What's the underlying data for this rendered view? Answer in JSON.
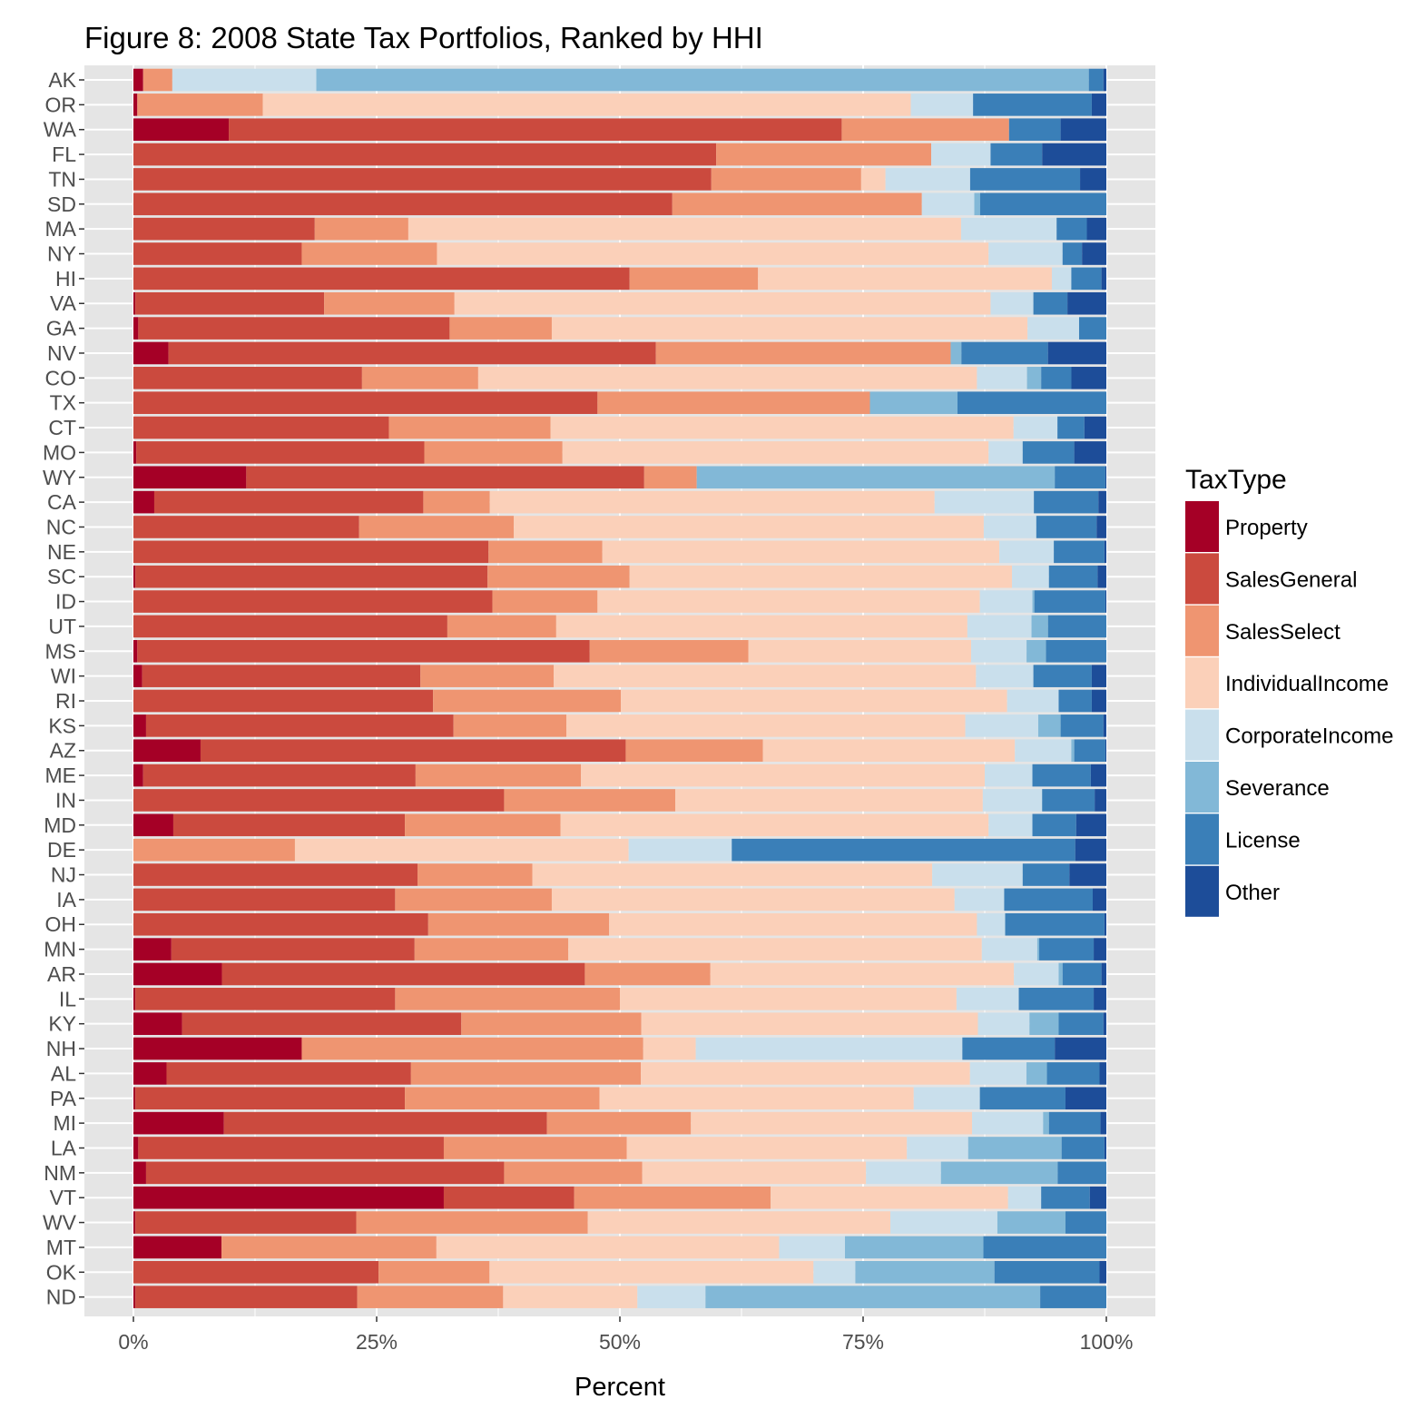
{
  "chart_data": {
    "type": "bar",
    "orientation": "horizontal",
    "stacked": "percent",
    "title": "Figure 8: 2008 State Tax Portfolios, Ranked by HHI",
    "xlabel": "Percent",
    "ylabel": "",
    "xlim": [
      0,
      100
    ],
    "x_ticks": [
      "0%",
      "25%",
      "50%",
      "75%",
      "100%"
    ],
    "x_tick_values": [
      0,
      25,
      50,
      75,
      100
    ],
    "legend_title": "TaxType",
    "legend_position": "right",
    "grid": true,
    "categories": [
      "AK",
      "OR",
      "WA",
      "FL",
      "TN",
      "SD",
      "MA",
      "NY",
      "HI",
      "VA",
      "GA",
      "NV",
      "CO",
      "TX",
      "CT",
      "MO",
      "WY",
      "CA",
      "NC",
      "NE",
      "SC",
      "ID",
      "UT",
      "MS",
      "WI",
      "RI",
      "KS",
      "AZ",
      "ME",
      "IN",
      "MD",
      "DE",
      "NJ",
      "IA",
      "OH",
      "MN",
      "AR",
      "IL",
      "KY",
      "NH",
      "AL",
      "PA",
      "MI",
      "LA",
      "NM",
      "VT",
      "WV",
      "MT",
      "OK",
      "ND"
    ],
    "series": [
      {
        "name": "Property",
        "color": "#a50026",
        "values": [
          1,
          0.4,
          9.8,
          0,
          0,
          0,
          0,
          0,
          0,
          0.2,
          0.5,
          3.6,
          0,
          0,
          0,
          0.3,
          11.6,
          2.1,
          0,
          0,
          0.2,
          0,
          0,
          0.4,
          0.9,
          0,
          1.3,
          6.9,
          1,
          0,
          4.1,
          0,
          0,
          0,
          0,
          3.9,
          9.1,
          0.2,
          5,
          17.3,
          3.4,
          0.2,
          9.3,
          0.5,
          1.3,
          31.9,
          0.2,
          9.1,
          0,
          0.2
        ]
      },
      {
        "name": "SalesGeneral",
        "color": "#cb4a3e",
        "values": [
          0,
          0,
          63,
          59.9,
          59.4,
          55.5,
          18.6,
          17.3,
          51,
          19.4,
          32,
          50.1,
          24.2,
          47.7,
          25.6,
          29.6,
          40.9,
          27.1,
          23.2,
          36.5,
          36.2,
          36.9,
          32.3,
          46.5,
          28.6,
          30.8,
          31.6,
          43.7,
          28,
          38.1,
          23.8,
          0,
          29.2,
          26.9,
          30.3,
          25,
          37.3,
          26.7,
          28.7,
          0,
          25.1,
          27.7,
          33.2,
          31.4,
          36.8,
          13.4,
          22.7,
          0,
          25.2,
          22.8
        ]
      },
      {
        "name": "SalesSelect",
        "color": "#ef9571",
        "values": [
          3,
          12.9,
          17.2,
          22.1,
          15.4,
          25.7,
          9.6,
          13.9,
          13.2,
          13.4,
          10.5,
          30.3,
          12.3,
          28,
          16.2,
          14.2,
          5.4,
          6.7,
          15.9,
          11.7,
          14.6,
          10.8,
          11.2,
          16.3,
          13.7,
          19.3,
          11.6,
          14.1,
          17,
          17.6,
          16,
          16.6,
          11.8,
          16.1,
          18.6,
          15.8,
          12.9,
          23.1,
          18.5,
          35.1,
          23.6,
          20,
          14.8,
          18.8,
          14.2,
          20.2,
          23.8,
          22.2,
          11.4,
          15
        ]
      },
      {
        "name": "IndividualIncome",
        "color": "#fbd0b9",
        "values": [
          0,
          66.6,
          0,
          0,
          2.5,
          0,
          56.7,
          56.7,
          30.2,
          55.1,
          48.9,
          0,
          52.8,
          0,
          46.4,
          43.8,
          0,
          44.8,
          48.3,
          40.8,
          39.3,
          39.3,
          42.3,
          22.9,
          43.4,
          39.7,
          41,
          25.9,
          41.5,
          31.6,
          44,
          34.3,
          41.1,
          41.4,
          37.8,
          42.5,
          31.2,
          34.6,
          34.6,
          5.4,
          33.8,
          32.3,
          28.9,
          28.8,
          23,
          24.4,
          31.1,
          35.4,
          33.3,
          13.8
        ]
      },
      {
        "name": "CorporateIncome",
        "color": "#c9dfec",
        "values": [
          14.8,
          6.4,
          0,
          6.1,
          8.7,
          5.4,
          9.8,
          7.6,
          2,
          4.4,
          5.3,
          0,
          5.3,
          0,
          4.4,
          3.5,
          0,
          10,
          5.4,
          5.6,
          3.8,
          5.4,
          6.6,
          5.7,
          5.9,
          5.3,
          7.5,
          5.8,
          4.9,
          6.1,
          4.5,
          10.6,
          9.3,
          5.1,
          2.9,
          5.7,
          4.6,
          6.4,
          5.3,
          27.4,
          5.8,
          6.8,
          7.3,
          6.3,
          7.7,
          3.4,
          11,
          6.8,
          4.3,
          7
        ]
      },
      {
        "name": "Severance",
        "color": "#82b8d7",
        "values": [
          79.4,
          0,
          0,
          0,
          0,
          0.6,
          0,
          0,
          0,
          0,
          0,
          1.1,
          1.5,
          9,
          0,
          0,
          36.8,
          0,
          0,
          0,
          0,
          0.2,
          1.7,
          2,
          0,
          0,
          2.3,
          0.3,
          0,
          0,
          0,
          0,
          0,
          0,
          0,
          0.2,
          0.4,
          0,
          3,
          0,
          2.1,
          0,
          0.6,
          9.6,
          12,
          0,
          7,
          14.3,
          14.3,
          34.4
        ]
      },
      {
        "name": "License",
        "color": "#3a7fb8",
        "values": [
          1.5,
          12.2,
          5.3,
          5.3,
          11.3,
          13,
          3.1,
          2,
          3.1,
          3.5,
          2.8,
          8.9,
          3.2,
          15.3,
          2.7,
          5.3,
          5.2,
          6.5,
          6.2,
          5.2,
          5,
          7.3,
          6,
          6.2,
          6,
          3.4,
          4.4,
          3.2,
          6,
          5.4,
          4.5,
          35.3,
          4.8,
          9.1,
          10.2,
          5.6,
          4,
          7.7,
          4.6,
          9.5,
          5.4,
          8.8,
          5.3,
          4.4,
          5,
          5,
          4.2,
          12.7,
          10.8,
          6.8
        ]
      },
      {
        "name": "Other",
        "color": "#1d4d99",
        "values": [
          0.3,
          1.5,
          4.7,
          6.6,
          2.7,
          0,
          2,
          2.5,
          0.5,
          4,
          0,
          6,
          3.7,
          0,
          2.2,
          3.3,
          0.1,
          0.8,
          1,
          0.2,
          0.9,
          0.1,
          0,
          0,
          1.5,
          1.5,
          0.3,
          0.1,
          1.6,
          1.2,
          3.1,
          3.2,
          3.8,
          1.4,
          0.2,
          1.3,
          0.5,
          1.3,
          0.3,
          5.3,
          0.7,
          4.2,
          0.6,
          0.2,
          0,
          1.7,
          0,
          0,
          0.7,
          0
        ]
      }
    ]
  }
}
